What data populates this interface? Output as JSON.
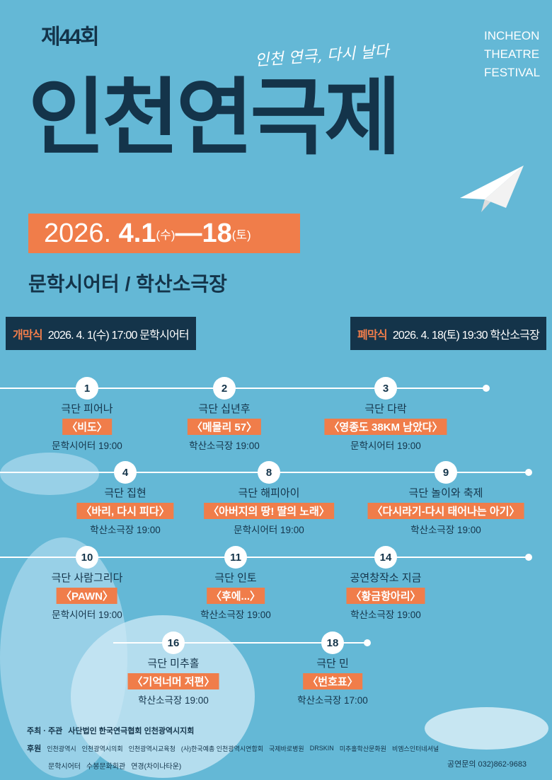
{
  "header": {
    "edition": "제44회",
    "slogan": "인천 연극, 다시 날다",
    "title": "인천연극제",
    "english": [
      "INCHEON",
      "THEATRE",
      "FESTIVAL"
    ]
  },
  "dates": {
    "start_year": "2026.",
    "start": "4.1",
    "start_day": "(수)",
    "dash": " — ",
    "end": "18",
    "end_day": "(토)"
  },
  "venues": "문학시어터 / 학산소극장",
  "opening": {
    "label": "개막식",
    "text": "2026. 4. 1(수) 17:00 문학시어터"
  },
  "closing": {
    "label": "폐막식",
    "text": "2026. 4. 18(토) 19:30 학산소극장"
  },
  "events": [
    {
      "num": "1",
      "group": "극단 피어나",
      "title": "〈비도〉",
      "venue": "문학시어터 19:00"
    },
    {
      "num": "2",
      "group": "극단 십년후",
      "title": "〈메몰리 57〉",
      "venue": "학산소극장 19:00"
    },
    {
      "num": "3",
      "group": "극단 다락",
      "title": "〈영종도 38KM 남았다〉",
      "venue": "문학시어터 19:00"
    },
    {
      "num": "4",
      "group": "극단 집현",
      "title": "〈바리, 다시 피다〉",
      "venue": "학산소극장 19:00"
    },
    {
      "num": "8",
      "group": "극단 해피아이",
      "title": "〈아버지의 땅! 딸의 노래〉",
      "venue": "문학시어터 19:00"
    },
    {
      "num": "9",
      "group": "극단 놀이와 축제",
      "title": "〈다시라기-다시 태어나는 아기〉",
      "venue": "학산소극장 19:00"
    },
    {
      "num": "10",
      "group": "극단 사람그리다",
      "title": "〈PAWN〉",
      "venue": "문학시어터 19:00"
    },
    {
      "num": "11",
      "group": "극단 인토",
      "title": "〈후에...〉",
      "venue": "학산소극장 19:00"
    },
    {
      "num": "14",
      "group": "공연창작소 지금",
      "title": "〈황금항아리〉",
      "venue": "학산소극장 19:00"
    },
    {
      "num": "16",
      "group": "극단 미추홀",
      "title": "〈기억너머 저편〉",
      "venue": "학산소극장 19:00"
    },
    {
      "num": "18",
      "group": "극단 민",
      "title": "〈번호표〉",
      "venue": "학산소극장 17:00"
    }
  ],
  "footer": {
    "host_label": "주최 · 주관",
    "host": "사단법인 한국연극협회 인천광역시지회",
    "sponsor_label": "후원",
    "sponsors": [
      "인천광역시",
      "인천광역시의회",
      "인천광역시교육청",
      "(사)한국예총 인천광역시연합회",
      "국제바로병원",
      "DRSKIN",
      "미추홀학산문화원",
      "비엠스인터네셔널"
    ],
    "venues": [
      "문학시어터",
      "수봉문화회관",
      "연경(차이나타운)"
    ],
    "contact_label": "공연문의",
    "contact": "032)862-9683"
  },
  "colors": {
    "background": "#64b8d6",
    "navy": "#14344a",
    "accent": "#f07d4a"
  }
}
